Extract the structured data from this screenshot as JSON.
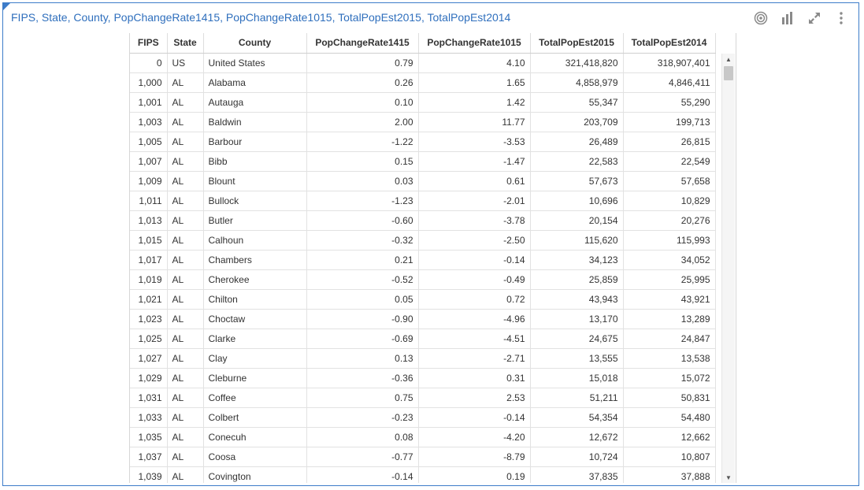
{
  "panel": {
    "title": "FIPS, State, County, PopChangeRate1415, PopChangeRate1015, TotalPopEst2015, TotalPopEst2014"
  },
  "toolbar": {
    "icons": [
      "target-icon",
      "bar-chart-icon",
      "expand-icon",
      "more-vertical-icon"
    ]
  },
  "colors": {
    "accent": "#3d7cc9",
    "title": "#2f6fbd",
    "grid_line": "#e2e2e2"
  },
  "table": {
    "columns": [
      "FIPS",
      "State",
      "County",
      "PopChangeRate1415",
      "PopChangeRate1015",
      "TotalPopEst2015",
      "TotalPopEst2014"
    ],
    "rows": [
      [
        "0",
        "US",
        "United States",
        "0.79",
        "4.10",
        "321,418,820",
        "318,907,401"
      ],
      [
        "1,000",
        "AL",
        "Alabama",
        "0.26",
        "1.65",
        "4,858,979",
        "4,846,411"
      ],
      [
        "1,001",
        "AL",
        "Autauga",
        "0.10",
        "1.42",
        "55,347",
        "55,290"
      ],
      [
        "1,003",
        "AL",
        "Baldwin",
        "2.00",
        "11.77",
        "203,709",
        "199,713"
      ],
      [
        "1,005",
        "AL",
        "Barbour",
        "-1.22",
        "-3.53",
        "26,489",
        "26,815"
      ],
      [
        "1,007",
        "AL",
        "Bibb",
        "0.15",
        "-1.47",
        "22,583",
        "22,549"
      ],
      [
        "1,009",
        "AL",
        "Blount",
        "0.03",
        "0.61",
        "57,673",
        "57,658"
      ],
      [
        "1,011",
        "AL",
        "Bullock",
        "-1.23",
        "-2.01",
        "10,696",
        "10,829"
      ],
      [
        "1,013",
        "AL",
        "Butler",
        "-0.60",
        "-3.78",
        "20,154",
        "20,276"
      ],
      [
        "1,015",
        "AL",
        "Calhoun",
        "-0.32",
        "-2.50",
        "115,620",
        "115,993"
      ],
      [
        "1,017",
        "AL",
        "Chambers",
        "0.21",
        "-0.14",
        "34,123",
        "34,052"
      ],
      [
        "1,019",
        "AL",
        "Cherokee",
        "-0.52",
        "-0.49",
        "25,859",
        "25,995"
      ],
      [
        "1,021",
        "AL",
        "Chilton",
        "0.05",
        "0.72",
        "43,943",
        "43,921"
      ],
      [
        "1,023",
        "AL",
        "Choctaw",
        "-0.90",
        "-4.96",
        "13,170",
        "13,289"
      ],
      [
        "1,025",
        "AL",
        "Clarke",
        "-0.69",
        "-4.51",
        "24,675",
        "24,847"
      ],
      [
        "1,027",
        "AL",
        "Clay",
        "0.13",
        "-2.71",
        "13,555",
        "13,538"
      ],
      [
        "1,029",
        "AL",
        "Cleburne",
        "-0.36",
        "0.31",
        "15,018",
        "15,072"
      ],
      [
        "1,031",
        "AL",
        "Coffee",
        "0.75",
        "2.53",
        "51,211",
        "50,831"
      ],
      [
        "1,033",
        "AL",
        "Colbert",
        "-0.23",
        "-0.14",
        "54,354",
        "54,480"
      ],
      [
        "1,035",
        "AL",
        "Conecuh",
        "0.08",
        "-4.20",
        "12,672",
        "12,662"
      ],
      [
        "1,037",
        "AL",
        "Coosa",
        "-0.77",
        "-8.79",
        "10,724",
        "10,807"
      ],
      [
        "1,039",
        "AL",
        "Covington",
        "-0.14",
        "0.19",
        "37,835",
        "37,888"
      ]
    ]
  }
}
